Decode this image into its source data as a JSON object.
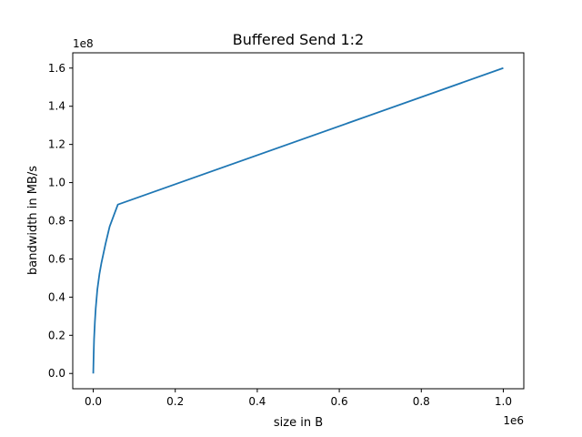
{
  "chart_data": {
    "type": "line",
    "title": "Buffered Send 1:2",
    "xlabel": "size in B",
    "ylabel": "bandwidth in MB/s",
    "x_offset_label": "1e6",
    "y_offset_label": "1e8",
    "xlim": [
      -50000,
      1050000
    ],
    "ylim": [
      -8000000,
      168000000
    ],
    "x_ticks": [
      0,
      200000,
      400000,
      600000,
      800000,
      1000000
    ],
    "x_tick_labels": [
      "0.0",
      "0.2",
      "0.4",
      "0.6",
      "0.8",
      "1.0"
    ],
    "y_ticks": [
      0,
      20000000,
      40000000,
      60000000,
      80000000,
      100000000,
      120000000,
      140000000,
      160000000
    ],
    "y_tick_labels": [
      "0.0",
      "0.2",
      "0.4",
      "0.6",
      "0.8",
      "1.0",
      "1.2",
      "1.4",
      "1.6"
    ],
    "grid": false,
    "series": [
      {
        "color": "#1f77b4",
        "x": [
          0,
          1000,
          2000,
          4000,
          6000,
          8000,
          10000,
          15000,
          20000,
          30000,
          40000,
          60000,
          1000000
        ],
        "y": [
          0,
          10000000,
          18000000,
          27000000,
          34000000,
          39000000,
          44000000,
          52000000,
          58000000,
          68000000,
          77000000,
          88500000,
          160000000
        ]
      }
    ]
  }
}
